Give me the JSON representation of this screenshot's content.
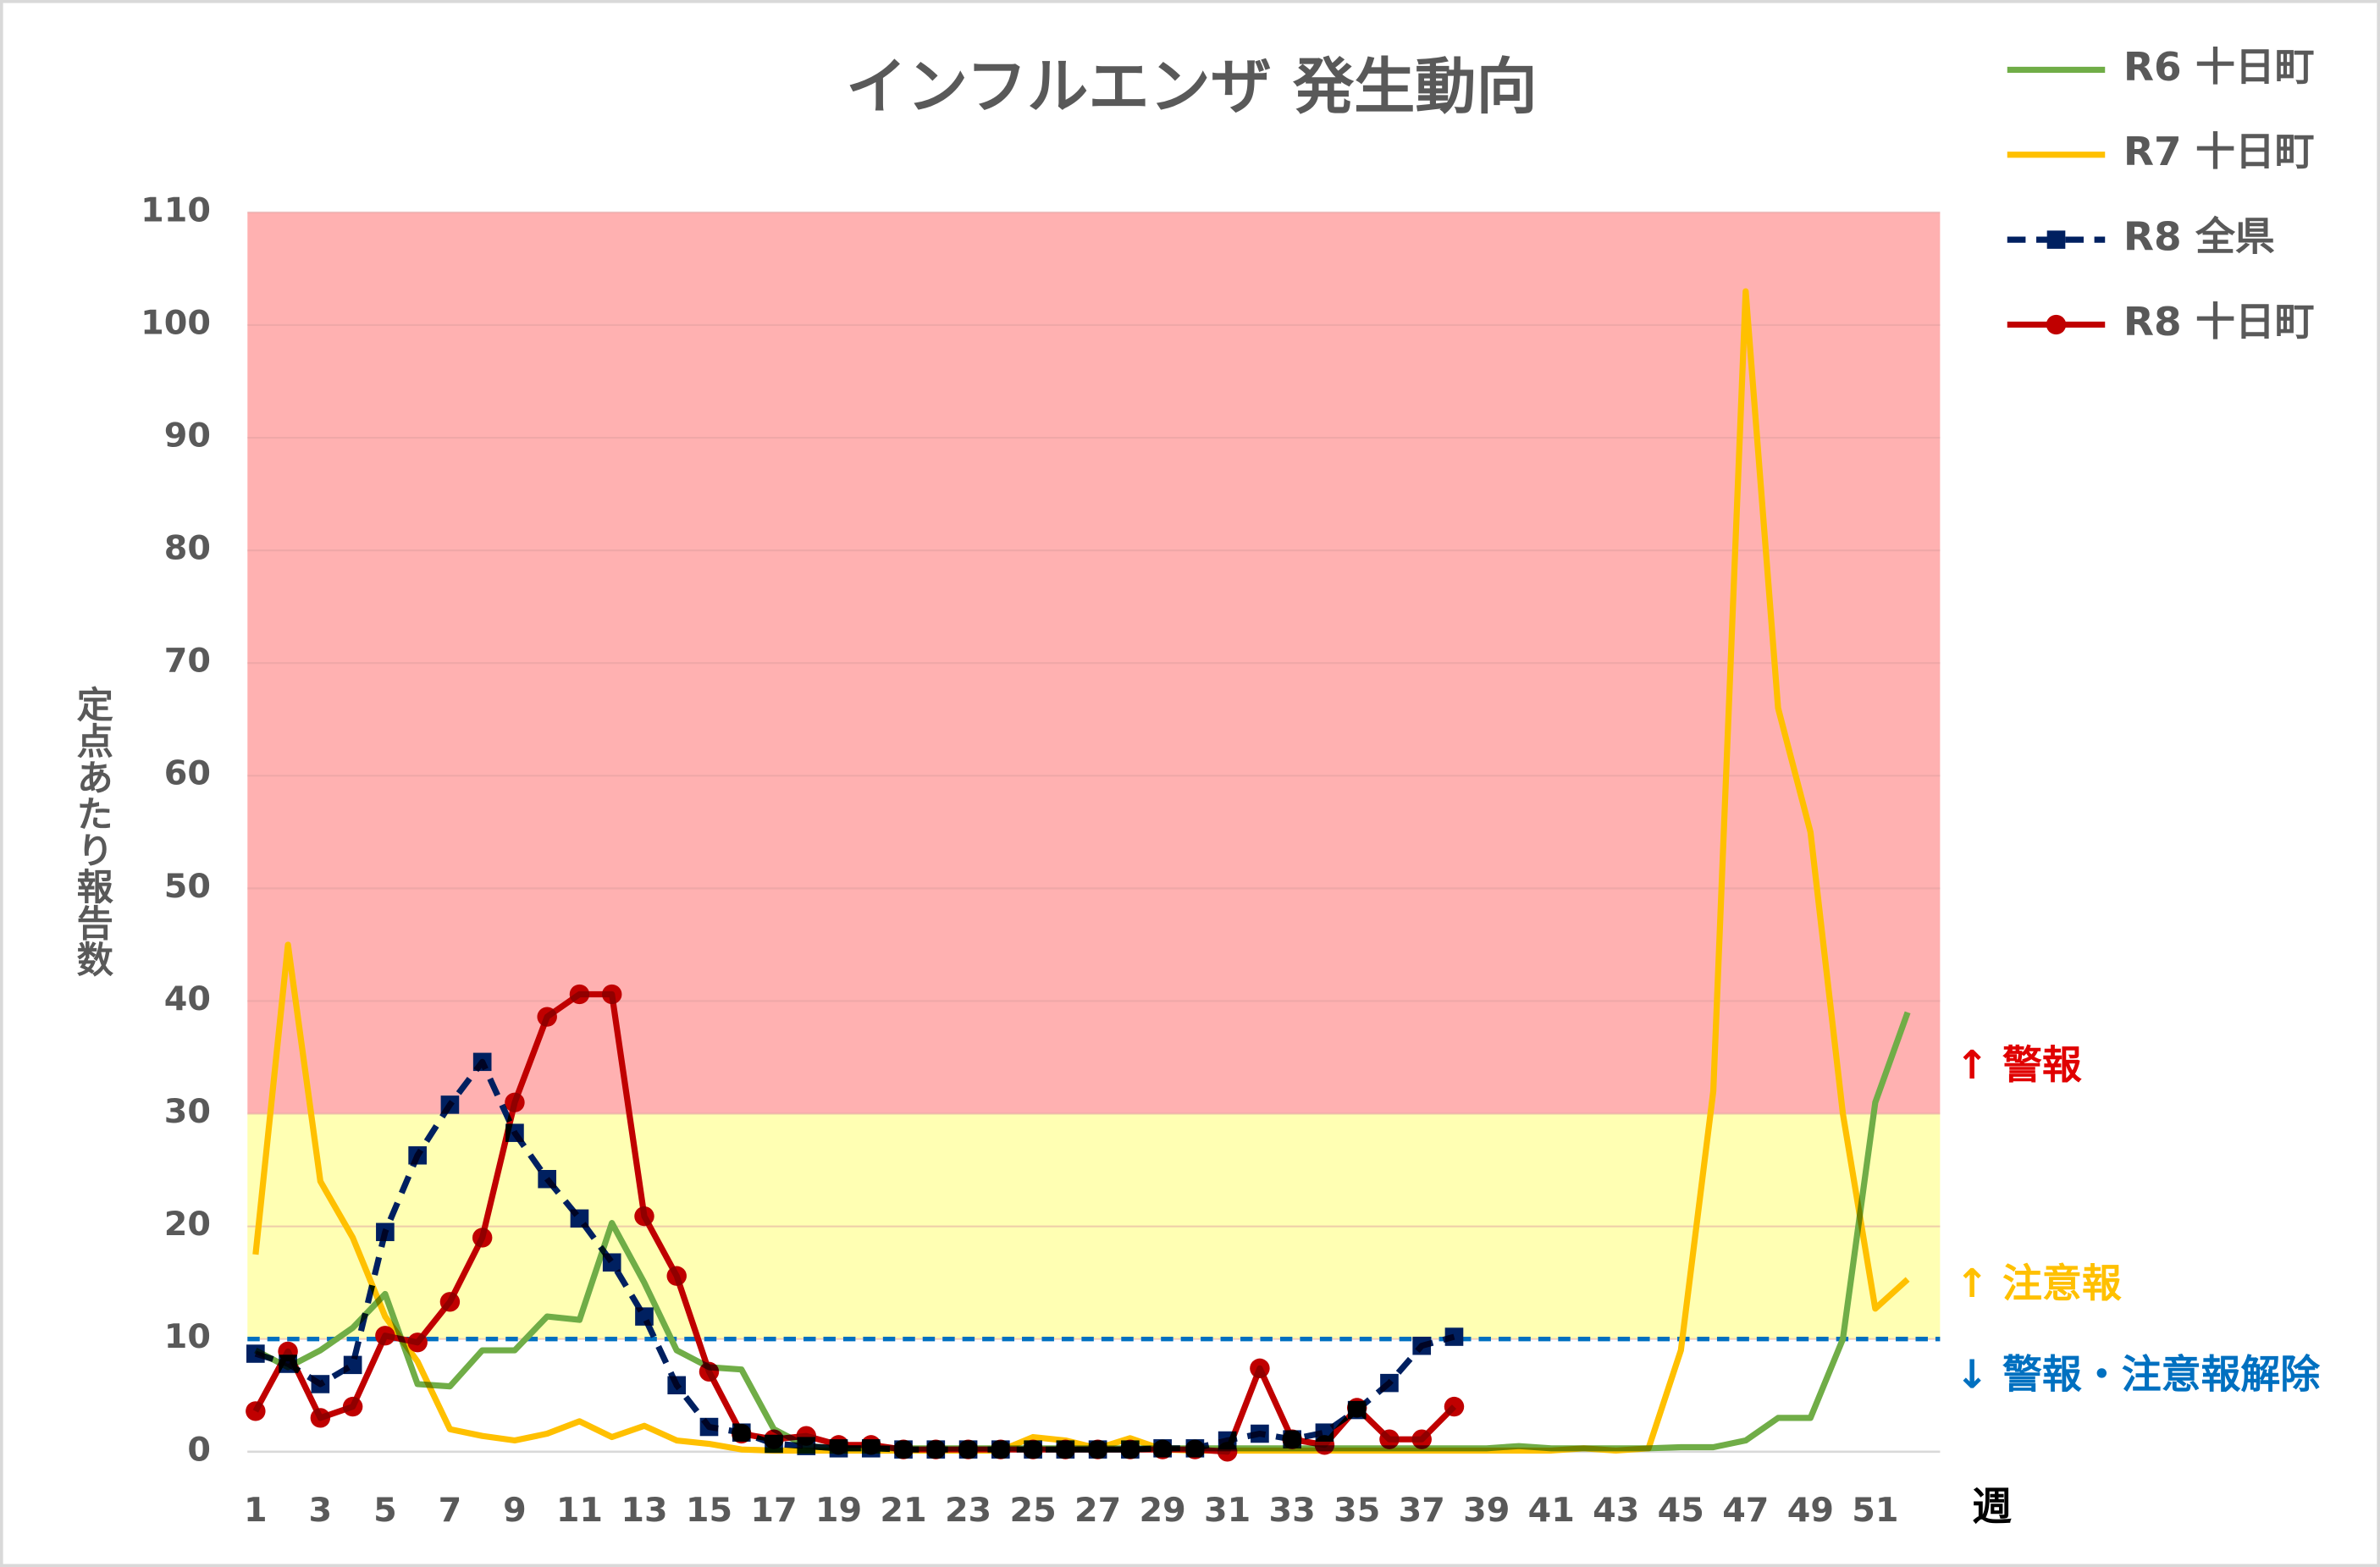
{
  "chart_data": {
    "type": "line",
    "title": "インフルエンザ 発生動向",
    "y_label": "定点あたり報告数",
    "x_label": "週",
    "x": [
      1,
      2,
      3,
      4,
      5,
      6,
      7,
      8,
      9,
      10,
      11,
      12,
      13,
      14,
      15,
      16,
      17,
      18,
      19,
      20,
      21,
      22,
      23,
      24,
      25,
      26,
      27,
      28,
      29,
      30,
      31,
      32,
      33,
      34,
      35,
      36,
      37,
      38,
      39,
      40,
      41,
      42,
      43,
      44,
      45,
      46,
      47,
      48,
      49,
      50,
      51,
      52
    ],
    "xlim": [
      0.75,
      53
    ],
    "xticks": [
      1,
      3,
      5,
      7,
      9,
      11,
      13,
      15,
      17,
      19,
      21,
      23,
      25,
      27,
      29,
      31,
      33,
      35,
      37,
      39,
      41,
      43,
      45,
      47,
      49,
      51
    ],
    "ylim": [
      0,
      110
    ],
    "yticks": [
      0,
      10,
      20,
      30,
      40,
      50,
      60,
      70,
      80,
      90,
      100,
      110
    ],
    "grid": true,
    "bands": [
      {
        "from": 30,
        "to": 110,
        "color": "#ffb1b1"
      },
      {
        "from": 10,
        "to": 30,
        "color": "#ffffb3"
      }
    ],
    "reference_line": {
      "value": 10,
      "color": "#0070c0"
    },
    "annotations": [
      {
        "text": "↑ 警報",
        "color": "#e00000"
      },
      {
        "text": "↑ 注意報",
        "color": "#ffc000"
      },
      {
        "text": "↓ 警報・注意報解除",
        "color": "#0070c0"
      }
    ],
    "series": [
      {
        "name": "R6 十日町",
        "color": "#70ad47",
        "style": "solid",
        "marker": "none",
        "values": [
          9,
          7.5,
          9,
          11,
          14,
          6,
          5.8,
          9,
          9,
          12,
          11.7,
          20.3,
          15,
          9,
          7.5,
          7.3,
          2,
          0.5,
          0.3,
          0.3,
          0.3,
          0.3,
          0.3,
          0.3,
          0.3,
          0.3,
          0.3,
          0.3,
          0.3,
          0.3,
          0.3,
          0.3,
          0.3,
          0.3,
          0.3,
          0.3,
          0.3,
          0.3,
          0.3,
          0.5,
          0.3,
          0.3,
          0.3,
          0.3,
          0.4,
          0.4,
          1,
          3,
          3,
          10,
          31,
          39
        ]
      },
      {
        "name": "R7 十日町",
        "color": "#ffc000",
        "style": "solid",
        "marker": "none",
        "values": [
          17.5,
          45,
          24,
          19,
          12,
          8,
          2,
          1.4,
          1,
          1.6,
          2.7,
          1.3,
          2.3,
          1,
          0.7,
          0.2,
          0.1,
          0.1,
          0.1,
          0.1,
          0.1,
          0.1,
          0.1,
          0.1,
          1.3,
          1,
          0.3,
          1.2,
          0.2,
          0.1,
          0.1,
          0.1,
          0.1,
          0.1,
          0.1,
          0.1,
          0.1,
          0.1,
          0.1,
          0.1,
          0.1,
          0.3,
          0.1,
          0.3,
          9,
          32,
          103,
          66,
          55,
          30,
          12.7,
          15.3
        ]
      },
      {
        "name": "R8 全県",
        "color": "#002060",
        "style": "dashed",
        "marker": "square",
        "values": [
          8.7,
          7.8,
          6,
          7.7,
          19.5,
          26.3,
          30.8,
          34.6,
          28.3,
          24.2,
          20.7,
          16.8,
          12,
          5.9,
          2.2,
          1.7,
          0.7,
          0.5,
          0.3,
          0.3,
          0.2,
          0.2,
          0.2,
          0.2,
          0.2,
          0.2,
          0.2,
          0.2,
          0.3,
          0.3,
          1,
          1.6,
          1.1,
          1.7,
          3.7,
          6.1,
          9.4,
          10.2,
          null,
          null,
          null,
          null,
          null,
          null,
          null,
          null,
          null,
          null,
          null,
          null,
          null,
          null
        ]
      },
      {
        "name": "R8 十日町",
        "color": "#c00000",
        "style": "solid",
        "marker": "circle",
        "values": [
          3.6,
          8.9,
          3,
          4,
          10.3,
          9.7,
          13.3,
          19,
          31,
          38.6,
          40.6,
          40.6,
          20.9,
          15.6,
          7.1,
          1.6,
          1.1,
          1.4,
          0.6,
          0.6,
          0.2,
          0.2,
          0.2,
          0.2,
          0.2,
          0.2,
          0.2,
          0.2,
          0.2,
          0.2,
          0,
          7.4,
          1.1,
          0.6,
          3.9,
          1.1,
          1.1,
          4,
          null,
          null,
          null,
          null,
          null,
          null,
          null,
          null,
          null,
          null,
          null,
          null,
          null,
          null
        ]
      }
    ]
  }
}
